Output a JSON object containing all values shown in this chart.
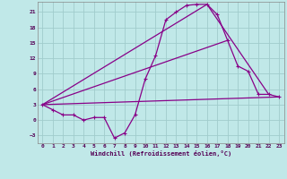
{
  "title": "",
  "xlabel": "Windchill (Refroidissement éolien,°C)",
  "bg_color": "#c0e8e8",
  "grid_color": "#a0cccc",
  "line_color": "#880088",
  "xlim": [
    -0.5,
    23.5
  ],
  "ylim": [
    -4.5,
    23.0
  ],
  "xticks": [
    0,
    1,
    2,
    3,
    4,
    5,
    6,
    7,
    8,
    9,
    10,
    11,
    12,
    13,
    14,
    15,
    16,
    17,
    18,
    19,
    20,
    21,
    22,
    23
  ],
  "yticks": [
    -3,
    0,
    3,
    6,
    9,
    12,
    15,
    18,
    21
  ],
  "line1_x": [
    0,
    1,
    2,
    3,
    4,
    5,
    6,
    7,
    8,
    9,
    10,
    11,
    12,
    13,
    14,
    15,
    16,
    17,
    18,
    19,
    20,
    21,
    22,
    23
  ],
  "line1_y": [
    3.0,
    2.0,
    1.0,
    1.0,
    0.0,
    0.5,
    0.5,
    -3.5,
    -2.5,
    1.0,
    8.0,
    12.5,
    19.5,
    21.0,
    22.3,
    22.5,
    22.5,
    20.5,
    15.5,
    10.5,
    9.5,
    5.0,
    5.0,
    4.5
  ],
  "line2_x": [
    0,
    23
  ],
  "line2_y": [
    3.0,
    4.5
  ],
  "line3_x": [
    0,
    18
  ],
  "line3_y": [
    3.0,
    15.5
  ],
  "line4_x": [
    0,
    16,
    22
  ],
  "line4_y": [
    3.0,
    22.5,
    5.0
  ]
}
